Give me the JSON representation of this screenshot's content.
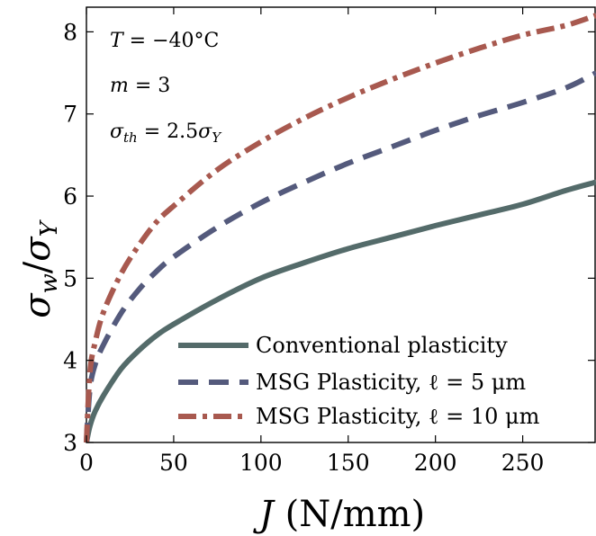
{
  "chart_data": {
    "type": "line",
    "xlabel": "J (N/mm)",
    "ylabel": "σw/σY",
    "xlim": [
      0,
      292
    ],
    "ylim": [
      3,
      8.3
    ],
    "x_ticks": [
      0,
      50,
      100,
      150,
      200,
      250
    ],
    "y_ticks": [
      3,
      4,
      5,
      6,
      7,
      8
    ],
    "grid": false,
    "legend_position": "bottom-right",
    "annotations": [
      "T = −40°C",
      "m = 3",
      "σth = 2.5σY"
    ],
    "series": [
      {
        "name": "Conventional plasticity",
        "color": "#546b6a",
        "style": "solid",
        "x": [
          0,
          2,
          5,
          10,
          20,
          30,
          40,
          50,
          75,
          100,
          125,
          150,
          175,
          200,
          225,
          250,
          275,
          292
        ],
        "y": [
          3.0,
          3.2,
          3.38,
          3.58,
          3.9,
          4.12,
          4.3,
          4.44,
          4.74,
          5.0,
          5.19,
          5.36,
          5.5,
          5.64,
          5.77,
          5.9,
          6.07,
          6.17
        ]
      },
      {
        "name": "MSG Plasticity, ℓ = 5 μm",
        "color": "#545a7c",
        "style": "dashed",
        "x": [
          0,
          2,
          5,
          10,
          20,
          30,
          40,
          50,
          75,
          100,
          125,
          150,
          175,
          200,
          225,
          250,
          275,
          292
        ],
        "y": [
          3.0,
          3.65,
          3.95,
          4.2,
          4.58,
          4.86,
          5.08,
          5.26,
          5.62,
          5.92,
          6.17,
          6.4,
          6.6,
          6.8,
          6.98,
          7.14,
          7.32,
          7.5
        ]
      },
      {
        "name": "MSG Plasticity, ℓ = 10 μm",
        "color": "#a8594f",
        "style": "dash-dot",
        "x": [
          0,
          2,
          5,
          10,
          20,
          30,
          40,
          50,
          75,
          100,
          125,
          150,
          175,
          200,
          225,
          250,
          275,
          292
        ],
        "y": [
          3.0,
          3.85,
          4.22,
          4.6,
          5.06,
          5.4,
          5.68,
          5.88,
          6.32,
          6.66,
          6.95,
          7.2,
          7.42,
          7.62,
          7.8,
          7.96,
          8.08,
          8.2
        ]
      }
    ]
  }
}
